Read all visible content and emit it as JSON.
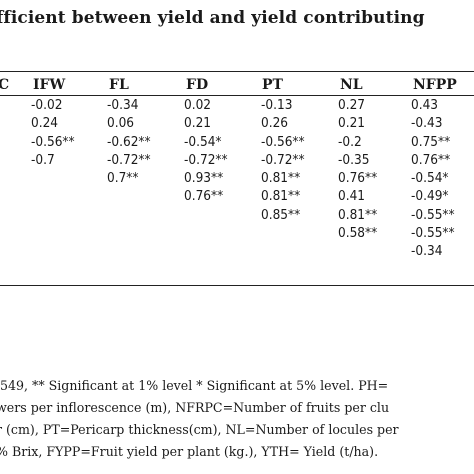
{
  "title": "fficient between yield and yield contributing",
  "headers": [
    "C",
    "IFW",
    "FL",
    "FD",
    "PT",
    "NL",
    "NFPP"
  ],
  "columns": {
    "IFW": [
      "-0.02",
      "0.24",
      "-0.56**",
      "-0.7"
    ],
    "FL": [
      "-0.34",
      "0.06",
      "-0.62**",
      "-0.72**",
      "0.7**"
    ],
    "FD": [
      "0.02",
      "0.21",
      "-0.54*",
      "-0.72**",
      "0.93**",
      "0.76**"
    ],
    "PT": [
      "-0.13",
      "0.26",
      "-0.56**",
      "-0.72**",
      "0.81**",
      "0.81**",
      "0.85**"
    ],
    "NL": [
      "0.27",
      "0.21",
      "-0.2",
      "-0.35",
      "0.76**",
      "0.41",
      "0.81**",
      "0.58**"
    ],
    "NFPP": [
      "0.43",
      "-0.43",
      "0.75**",
      "0.76**",
      "-0.54*",
      "-0.49*",
      "-0.55**",
      "-0.55**",
      "-0.34"
    ]
  },
  "footnotes": [
    ".549, ** Significant at 1% level * Significant at 5% level. PH=",
    "wers per inflorescence (m), NFRPC=Number of fruits per clu",
    "r (cm), PT=Pericarp thickness(cm), NL=Number of locules per",
    "% Brix, FYPP=Fruit yield per plant (kg.), YTH= Yield (t/ha)."
  ]
}
